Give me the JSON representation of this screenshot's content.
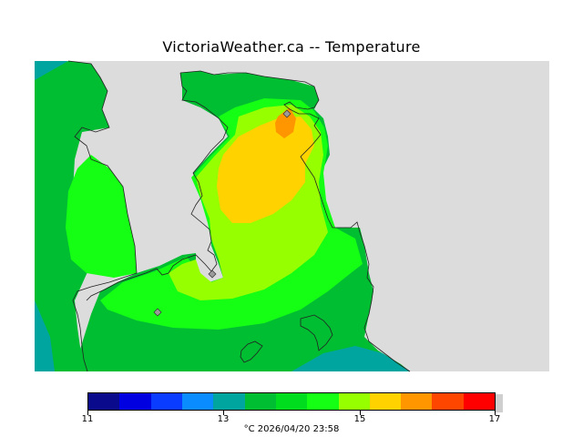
{
  "title": "VictoriaWeather.ca -- Temperature",
  "legend": {
    "colors": [
      "#0a0a8c",
      "#0000e0",
      "#0a3cff",
      "#0a8cff",
      "#00a5a0",
      "#00be32",
      "#00dc1e",
      "#14ff14",
      "#96ff00",
      "#ffd200",
      "#ff9600",
      "#ff4600",
      "#ff0000"
    ],
    "tick_labels": [
      "11",
      "13",
      "15",
      "17"
    ],
    "tick_values": [
      11,
      13,
      15,
      17
    ],
    "min": 11,
    "max": 17
  },
  "footer": "°C  2026/04/20 23:58",
  "map_colors": {
    "land_gray": "#dcdcdc",
    "teal": "#00a5a0",
    "green": "#00be32",
    "bright_green": "#14ff14",
    "yellow_green": "#96ff00",
    "yellow": "#ffd200",
    "orange": "#ff9600"
  }
}
